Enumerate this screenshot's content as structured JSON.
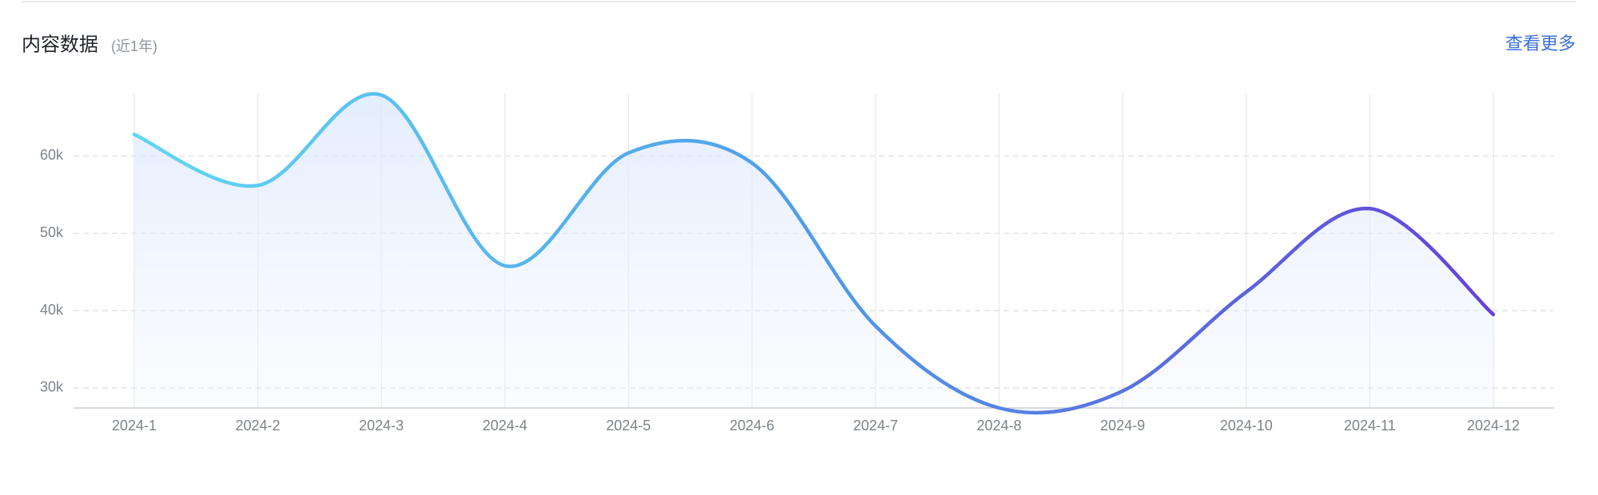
{
  "chart_data": {
    "type": "line",
    "title": "内容数据",
    "subtitle": "(近1年)",
    "action_link": "查看更多",
    "categories": [
      "2024-1",
      "2024-2",
      "2024-3",
      "2024-4",
      "2024-5",
      "2024-6",
      "2024-7",
      "2024-8",
      "2024-9",
      "2024-10",
      "2024-11",
      "2024-12"
    ],
    "values": [
      62800,
      56200,
      67900,
      45800,
      60400,
      59100,
      38000,
      27400,
      29600,
      42400,
      53200,
      39500
    ],
    "color": [
      "#62d6f2",
      "#4f9ce8",
      "#6542d8"
    ],
    "ylim": [
      27400,
      67900
    ],
    "yticks": [
      {
        "value": 30000,
        "label": "30k"
      },
      {
        "value": 40000,
        "label": "40k"
      },
      {
        "value": 50000,
        "label": "50k"
      },
      {
        "value": 60000,
        "label": "60k"
      }
    ],
    "grid": true,
    "smooth": true
  }
}
